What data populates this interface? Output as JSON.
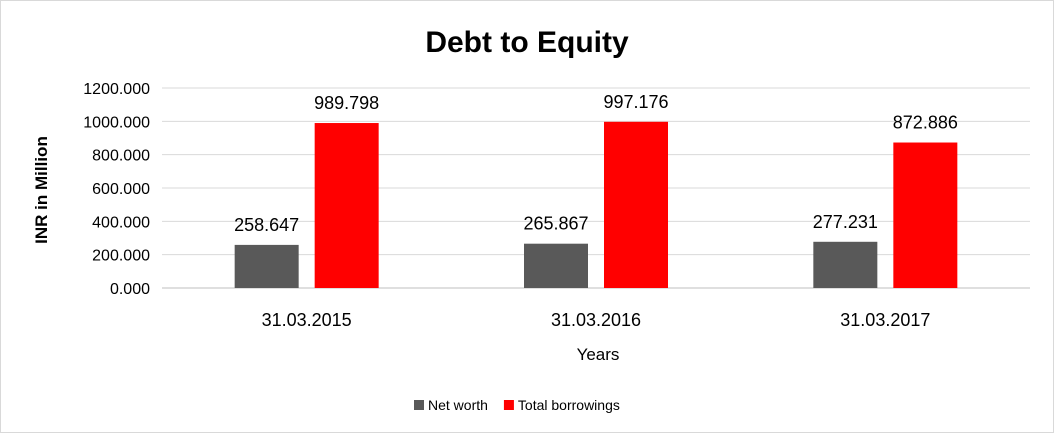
{
  "chart_data": {
    "type": "bar",
    "title": "Debt to Equity",
    "xlabel": "Years",
    "ylabel": "INR in Million",
    "categories": [
      "31.03.2015",
      "31.03.2016",
      "31.03.2017"
    ],
    "series": [
      {
        "name": "Net worth",
        "color": "#595959",
        "values": [
          258.647,
          265.867,
          277.231
        ],
        "labels": [
          "258.647",
          "265.867",
          "277.231"
        ]
      },
      {
        "name": "Total borrowings",
        "color": "#ff0000",
        "values": [
          989.798,
          997.176,
          872.886
        ],
        "labels": [
          "989.798",
          "997.176",
          "872.886"
        ]
      }
    ],
    "ylim": [
      0,
      1200
    ],
    "yticks": [
      0,
      200,
      400,
      600,
      800,
      1000,
      1200
    ],
    "ytick_labels": [
      "0.000",
      "200.000",
      "400.000",
      "600.000",
      "800.000",
      "1000.000",
      "1200.000"
    ],
    "grid": true,
    "legend_position": "bottom"
  }
}
